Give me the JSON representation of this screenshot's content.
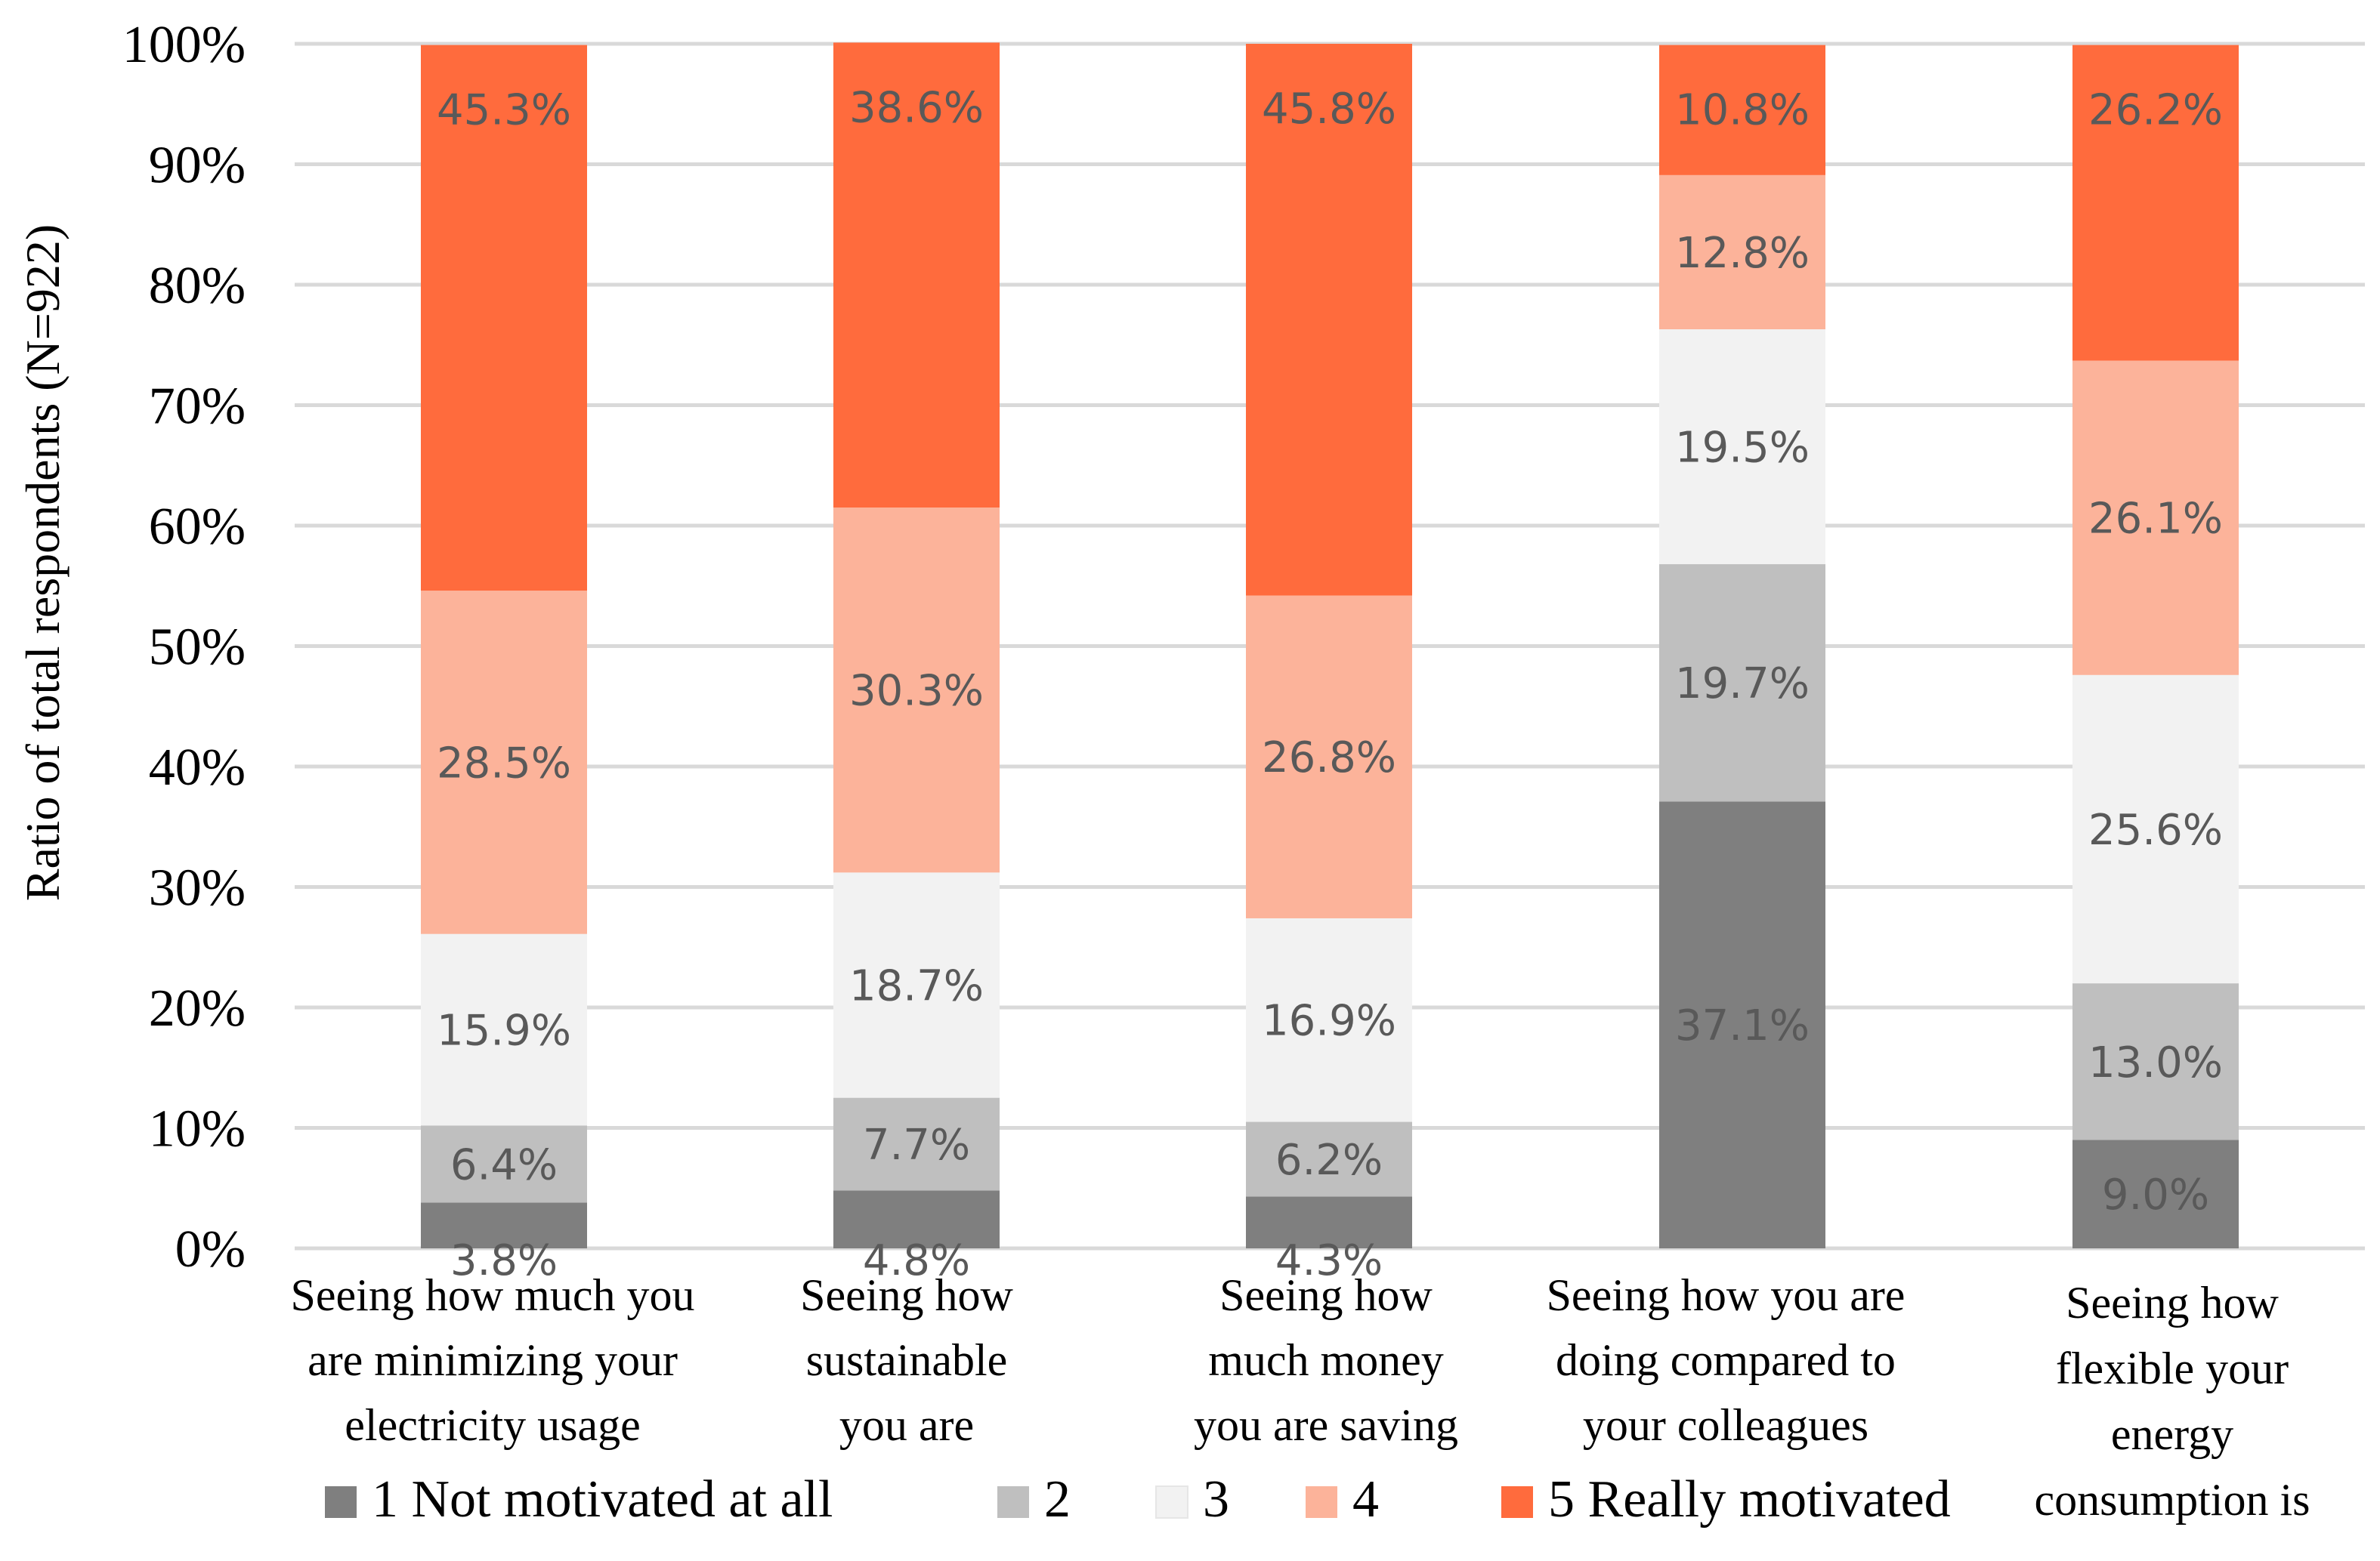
{
  "chart_data": {
    "type": "bar",
    "stacked": true,
    "ylabel": "Ratio of total respondents (N=922)",
    "ylim": [
      0,
      100
    ],
    "yticks": [
      "0%",
      "10%",
      "20%",
      "30%",
      "40%",
      "50%",
      "60%",
      "70%",
      "80%",
      "90%",
      "100%"
    ],
    "categories": [
      [
        "Seeing how much you",
        "are minimizing your",
        "electricity usage"
      ],
      [
        "Seeing how",
        "sustainable",
        "you are"
      ],
      [
        "Seeing how",
        "much money",
        "you are saving"
      ],
      [
        "Seeing how you are",
        "doing compared to",
        "your colleagues"
      ],
      [
        "Seeing how",
        "flexible your",
        "energy",
        "consumption is"
      ]
    ],
    "series": [
      {
        "name": "1 Not motivated at all",
        "color": "#7f7f7f",
        "values": [
          3.8,
          4.8,
          4.3,
          37.1,
          9.0
        ],
        "labels": [
          "3.8%",
          "4.8%",
          "4.3%",
          "37.1%",
          "9.0%"
        ]
      },
      {
        "name": "2",
        "color": "#bfbfbf",
        "values": [
          6.4,
          7.7,
          6.2,
          19.7,
          13.0
        ],
        "labels": [
          "6.4%",
          "7.7%",
          "6.2%",
          "19.7%",
          "13.0%"
        ]
      },
      {
        "name": "3",
        "color": "#f2f2f2",
        "values": [
          15.9,
          18.7,
          16.9,
          19.5,
          25.6
        ],
        "labels": [
          "15.9%",
          "18.7%",
          "16.9%",
          "19.5%",
          "25.6%"
        ]
      },
      {
        "name": "4",
        "color": "#fcb39a",
        "values": [
          28.5,
          30.3,
          26.8,
          12.8,
          26.1
        ],
        "labels": [
          "28.5%",
          "30.3%",
          "26.8%",
          "12.8%",
          "26.1%"
        ]
      },
      {
        "name": "5 Really motivated",
        "color": "#ff6b3d",
        "values": [
          45.3,
          38.6,
          45.8,
          10.8,
          26.2
        ],
        "labels": [
          "45.3%",
          "38.6%",
          "45.8%",
          "10.8%",
          "26.2%"
        ]
      }
    ],
    "grid": true,
    "legend": "bottom"
  }
}
